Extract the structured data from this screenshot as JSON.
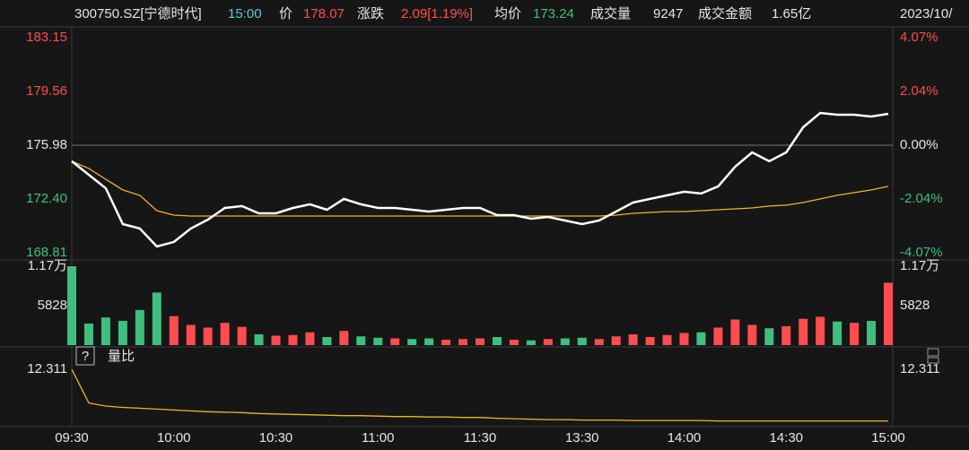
{
  "header": {
    "symbol": "300750.SZ[宁德时代]",
    "time": "15:00",
    "date": "2023/10/",
    "fields": [
      {
        "label": "价",
        "value": "178.07",
        "color": "#ff4d4f"
      },
      {
        "label": "涨跌",
        "value": "2.09[1.19%]",
        "color": "#ff4d4f"
      },
      {
        "label": "均价",
        "value": "173.24",
        "color": "#3fbf7f"
      },
      {
        "label": "成交量",
        "value": "9247",
        "color": "#e6e6e6"
      },
      {
        "label": "成交金额",
        "value": "1.65亿",
        "color": "#e6e6e6"
      }
    ]
  },
  "panel_icons": {
    "help": "?"
  },
  "chart_data": [
    {
      "type": "line",
      "categories": [
        "09:30",
        null,
        null,
        null,
        null,
        null,
        "10:00",
        null,
        null,
        null,
        null,
        null,
        "10:30",
        null,
        null,
        null,
        null,
        null,
        "11:00",
        null,
        null,
        null,
        null,
        null,
        "11:30",
        null,
        null,
        null,
        null,
        null,
        "13:30",
        null,
        null,
        null,
        null,
        null,
        "14:00",
        null,
        null,
        null,
        null,
        null,
        "14:30",
        null,
        null,
        null,
        null,
        null,
        "15:00"
      ],
      "ylim": [
        168.81,
        183.15
      ],
      "yticks": [
        168.81,
        {
          "value": 172.4,
          "label": "172.40"
        },
        175.98,
        179.56,
        183.15
      ],
      "y2lim": [
        -4.07,
        4.07
      ],
      "y2ticks": [
        {
          "value": -4.07,
          "label": "-4.07%"
        },
        {
          "value": -2.04,
          "label": "-2.04%"
        },
        {
          "value": 0,
          "label": "0.00%"
        },
        {
          "value": 2.04,
          "label": "2.04%"
        },
        {
          "value": 4.07,
          "label": "4.07%"
        }
      ],
      "up_color": "#ff4d4f",
      "down_color": "#3fbf7f",
      "flat_color": "#e6e6e6",
      "series": [
        {
          "color": "#ffffff",
          "values": [
            174.91,
            174.01,
            173.11,
            170.72,
            170.43,
            169.23,
            169.53,
            170.43,
            171.02,
            171.8,
            171.92,
            171.44,
            171.44,
            171.8,
            172.04,
            171.68,
            172.4,
            172.04,
            171.8,
            171.8,
            171.68,
            171.56,
            171.68,
            171.8,
            171.8,
            171.32,
            171.32,
            171.08,
            171.2,
            170.96,
            170.72,
            170.96,
            171.56,
            172.16,
            172.4,
            172.64,
            172.88,
            172.76,
            173.24,
            174.55,
            175.5,
            174.91,
            175.5,
            177.18,
            178.13,
            178.01,
            178.01,
            177.89,
            178.07
          ]
        },
        {
          "color": "#f0b429",
          "values": [
            174.91,
            174.43,
            173.71,
            173.0,
            172.64,
            171.62,
            171.32,
            171.26,
            171.26,
            171.26,
            171.26,
            171.26,
            171.26,
            171.26,
            171.26,
            171.26,
            171.26,
            171.26,
            171.26,
            171.26,
            171.26,
            171.26,
            171.26,
            171.26,
            171.26,
            171.26,
            171.26,
            171.26,
            171.26,
            171.26,
            171.26,
            171.26,
            171.32,
            171.44,
            171.5,
            171.56,
            171.56,
            171.62,
            171.68,
            171.74,
            171.8,
            171.92,
            171.98,
            172.16,
            172.4,
            172.64,
            172.82,
            173.0,
            173.24
          ]
        }
      ]
    },
    {
      "type": "bar",
      "ylim": [
        0,
        11700
      ],
      "yticks": [
        5828,
        {
          "value": 11700,
          "label": "1.17万"
        }
      ],
      "values": [
        11700,
        3200,
        4100,
        3600,
        5200,
        7800,
        4300,
        3000,
        2600,
        3300,
        2700,
        1600,
        1400,
        1500,
        1900,
        1200,
        2100,
        1300,
        1100,
        1000,
        900,
        1000,
        800,
        900,
        1000,
        1200,
        800,
        700,
        900,
        1000,
        1100,
        900,
        1300,
        1600,
        1200,
        1500,
        1800,
        1900,
        2600,
        3800,
        3000,
        2500,
        2800,
        3900,
        4200,
        3500,
        3300,
        3600,
        9247
      ]
    },
    {
      "type": "line",
      "title": "量比",
      "ylim": [
        0,
        12.311
      ],
      "yticks": [
        12.311
      ],
      "color": "#f0b429",
      "values": [
        12.3,
        4.6,
        3.9,
        3.6,
        3.4,
        3.2,
        3.0,
        2.8,
        2.6,
        2.5,
        2.4,
        2.2,
        2.1,
        2.0,
        1.9,
        1.8,
        1.7,
        1.7,
        1.6,
        1.5,
        1.5,
        1.4,
        1.4,
        1.3,
        1.3,
        1.1,
        1.0,
        0.9,
        0.8,
        0.8,
        0.7,
        0.7,
        0.7,
        0.6,
        0.6,
        0.6,
        0.6,
        0.6,
        0.5,
        0.5,
        0.5,
        0.5,
        0.5,
        0.5,
        0.5,
        0.5,
        0.5,
        0.5,
        0.5
      ]
    }
  ]
}
